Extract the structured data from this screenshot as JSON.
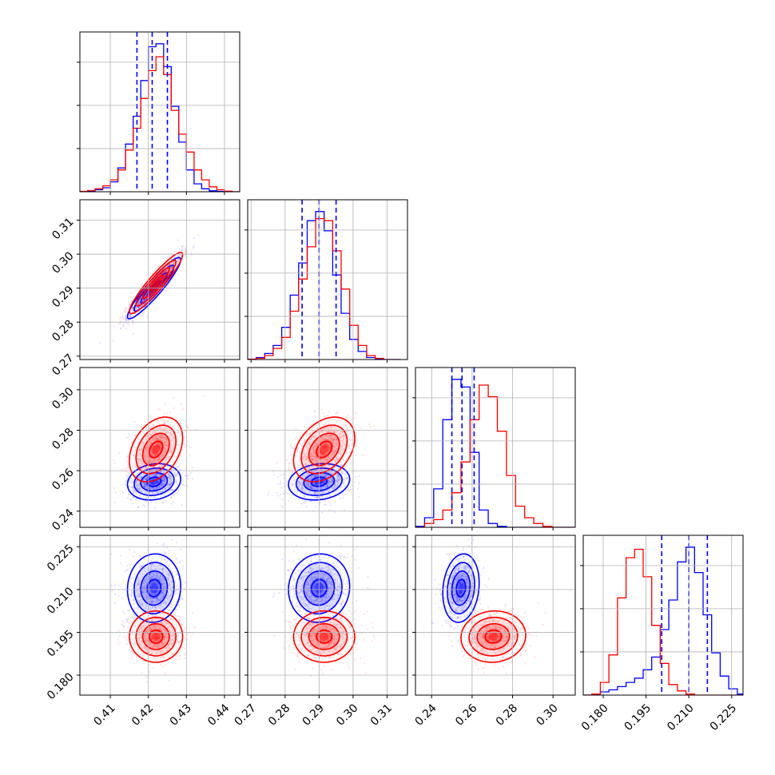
{
  "colors": {
    "series_a": "#0000ff",
    "series_b": "#ff0000",
    "grid": "#b0b0b0",
    "frame": "#000000"
  },
  "chart_data": {
    "type": "corner",
    "grid": true,
    "title": "",
    "parameters": [
      {
        "index": 0,
        "range": [
          0.402,
          0.444
        ],
        "ticks": [
          0.41,
          0.42,
          0.43,
          0.44
        ],
        "tick_labels": [
          "0.41",
          "0.42",
          "0.43",
          "0.44"
        ]
      },
      {
        "index": 1,
        "range": [
          0.269,
          0.316
        ],
        "ticks": [
          0.27,
          0.28,
          0.29,
          0.3,
          0.31
        ],
        "tick_labels": [
          "0.27",
          "0.28",
          "0.29",
          "0.30",
          "0.31"
        ]
      },
      {
        "index": 2,
        "range": [
          0.232,
          0.311
        ],
        "ticks": [
          0.24,
          0.26,
          0.28,
          0.3
        ],
        "tick_labels": [
          "0.24",
          "0.26",
          "0.28",
          "0.30"
        ]
      },
      {
        "index": 3,
        "range": [
          0.173,
          0.229
        ],
        "ticks": [
          0.18,
          0.195,
          0.21,
          0.225
        ],
        "tick_labels": [
          "0.180",
          "0.195",
          "0.210",
          "0.225"
        ]
      }
    ],
    "series": [
      {
        "color": "#0000ff",
        "mean": [
          0.4215,
          0.29,
          0.2545,
          0.2105
        ],
        "std": [
          0.0035,
          0.0045,
          0.0045,
          0.006
        ],
        "quantiles_shown": true,
        "quantiles": [
          [
            0.417,
            0.421,
            0.425
          ],
          [
            0.285,
            0.29,
            0.295
          ],
          [
            0.25,
            0.255,
            0.261
          ],
          [
            0.2005,
            0.21,
            0.2165
          ]
        ],
        "correlations": {
          "0-1": 0.93,
          "0-2": 0.15,
          "0-3": 0.05,
          "1-2": 0.15,
          "1-3": 0.05,
          "2-3": 0.15
        }
      },
      {
        "color": "#ff0000",
        "mean": [
          0.422,
          0.2915,
          0.2705,
          0.1935
        ],
        "std": [
          0.0035,
          0.0045,
          0.008,
          0.0045
        ],
        "quantiles_shown": false,
        "correlations": {
          "0-1": 0.93,
          "0-2": 0.35,
          "0-3": 0.0,
          "1-2": 0.35,
          "1-3": 0.0,
          "2-3": 0.05
        }
      }
    ],
    "histograms": {
      "0": {
        "bins": [
          0.402,
          0.404,
          0.406,
          0.408,
          0.41,
          0.412,
          0.414,
          0.416,
          0.418,
          0.42,
          0.422,
          0.424,
          0.426,
          0.428,
          0.43,
          0.432,
          0.434,
          0.436,
          0.438,
          0.44,
          0.442,
          0.444
        ],
        "blue": [
          0,
          3,
          10,
          20,
          50,
          120,
          240,
          380,
          560,
          730,
          745,
          630,
          430,
          250,
          110,
          40,
          15,
          5,
          2,
          0,
          0
        ],
        "red": [
          2,
          6,
          15,
          30,
          60,
          110,
          210,
          320,
          470,
          610,
          680,
          590,
          410,
          290,
          200,
          110,
          60,
          25,
          10,
          3,
          0
        ]
      },
      "1": {
        "bins": [
          0.269,
          0.2715,
          0.274,
          0.2765,
          0.279,
          0.2815,
          0.284,
          0.2865,
          0.289,
          0.2915,
          0.294,
          0.2965,
          0.299,
          0.3015,
          0.304,
          0.3065,
          0.309,
          0.3115,
          0.314
        ],
        "blue": [
          2,
          10,
          30,
          70,
          160,
          320,
          480,
          690,
          735,
          640,
          420,
          230,
          100,
          40,
          10,
          3,
          0,
          0
        ],
        "red": [
          1,
          6,
          20,
          55,
          110,
          240,
          400,
          560,
          700,
          690,
          540,
          350,
          170,
          70,
          20,
          6,
          0,
          0
        ]
      },
      "2": {
        "bins": [
          0.232,
          0.2365,
          0.241,
          0.2455,
          0.25,
          0.2545,
          0.259,
          0.2635,
          0.268,
          0.2725,
          0.277,
          0.2815,
          0.286,
          0.2905,
          0.295,
          0.2995,
          0.304,
          0.3085,
          0.311
        ],
        "blue": [
          5,
          50,
          200,
          560,
          770,
          730,
          390,
          90,
          20,
          5,
          0,
          0,
          0,
          0,
          0,
          0,
          0,
          0
        ],
        "red": [
          0,
          20,
          40,
          90,
          180,
          340,
          560,
          740,
          680,
          500,
          270,
          110,
          50,
          20,
          5,
          0,
          0,
          0
        ]
      },
      "3": {
        "bins": [
          0.173,
          0.176,
          0.179,
          0.182,
          0.185,
          0.188,
          0.191,
          0.194,
          0.197,
          0.2,
          0.203,
          0.206,
          0.209,
          0.212,
          0.215,
          0.218,
          0.221,
          0.224,
          0.227,
          0.229
        ],
        "blue": [
          0,
          5,
          15,
          25,
          40,
          60,
          80,
          120,
          180,
          310,
          450,
          630,
          700,
          580,
          380,
          200,
          90,
          30,
          5
        ],
        "red": [
          0,
          5,
          60,
          190,
          460,
          650,
          690,
          560,
          330,
          150,
          50,
          20,
          5,
          0,
          0,
          0,
          0,
          0,
          0
        ]
      }
    }
  }
}
